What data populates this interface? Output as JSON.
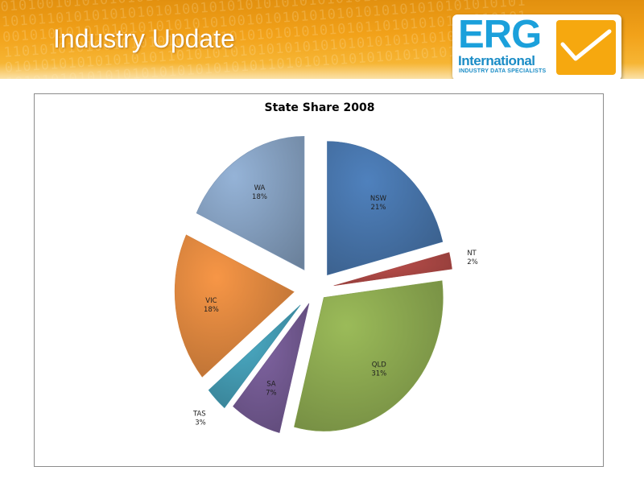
{
  "slide": {
    "title": "Industry Update"
  },
  "logo": {
    "name": "ERG",
    "line2": "International",
    "tagline": "INDUSTRY DATA SPECIALISTS"
  },
  "colors": {
    "header": "#f2a21a",
    "NSW": "#4f81bd",
    "NT": "#c0504d",
    "QLD": "#9bbb59",
    "SA": "#8064a2",
    "TAS": "#4bacc6",
    "VIC": "#f79646",
    "WA": "#95b3d7"
  },
  "chart_data": {
    "type": "pie",
    "title": "State Share 2008",
    "labels_shown": "category and percent",
    "exploded": true,
    "categories": [
      "NSW",
      "NT",
      "QLD",
      "SA",
      "TAS",
      "VIC",
      "WA"
    ],
    "values": [
      21,
      2,
      31,
      7,
      3,
      18,
      18
    ],
    "percent_labels": [
      "21%",
      "2%",
      "31%",
      "7%",
      "3%",
      "18%",
      "18%"
    ]
  }
}
